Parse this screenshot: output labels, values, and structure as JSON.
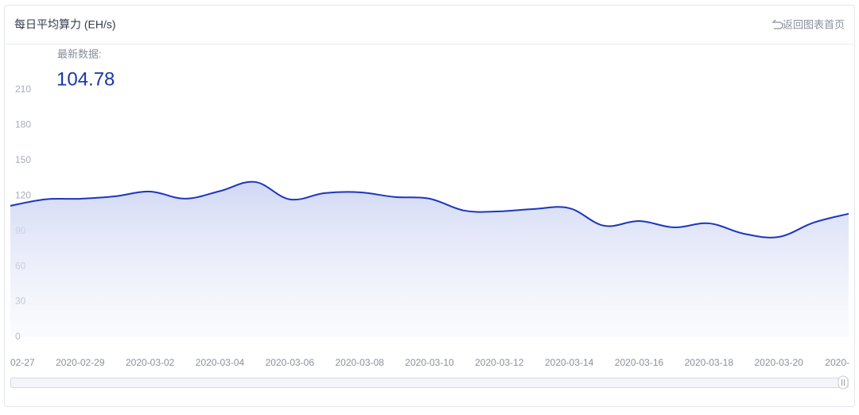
{
  "header": {
    "title": "每日平均算力 (EH/s)",
    "back_link": "返回图表首页"
  },
  "latest": {
    "label": "最新数据:",
    "value": 104.78
  },
  "chart_data": {
    "type": "line",
    "categories": [
      "02-27",
      null,
      "2020-02-29",
      null,
      "2020-03-02",
      null,
      "2020-03-04",
      null,
      "2020-03-06",
      null,
      "2020-03-08",
      null,
      "2020-03-10",
      null,
      "2020-03-12",
      null,
      "2020-03-14",
      null,
      "2020-03-16",
      null,
      "2020-03-18",
      null,
      "2020-03-20",
      null,
      "2020-"
    ],
    "series": [
      {
        "color": "#1c36c0",
        "values": [
          111.5,
          117,
          117.5,
          119.6,
          123.6,
          117.6,
          124,
          131.8,
          117,
          122.3,
          123,
          119,
          117.6,
          107.4,
          106.8,
          108.8,
          109.5,
          94.6,
          98.6,
          93.2,
          96.6,
          87.8,
          85.1,
          97.3,
          104.78
        ]
      }
    ],
    "ylim": [
      0,
      210
    ],
    "yticks": [
      0,
      30,
      60,
      90,
      120,
      150,
      180,
      210
    ],
    "grid": false,
    "area": true
  }
}
